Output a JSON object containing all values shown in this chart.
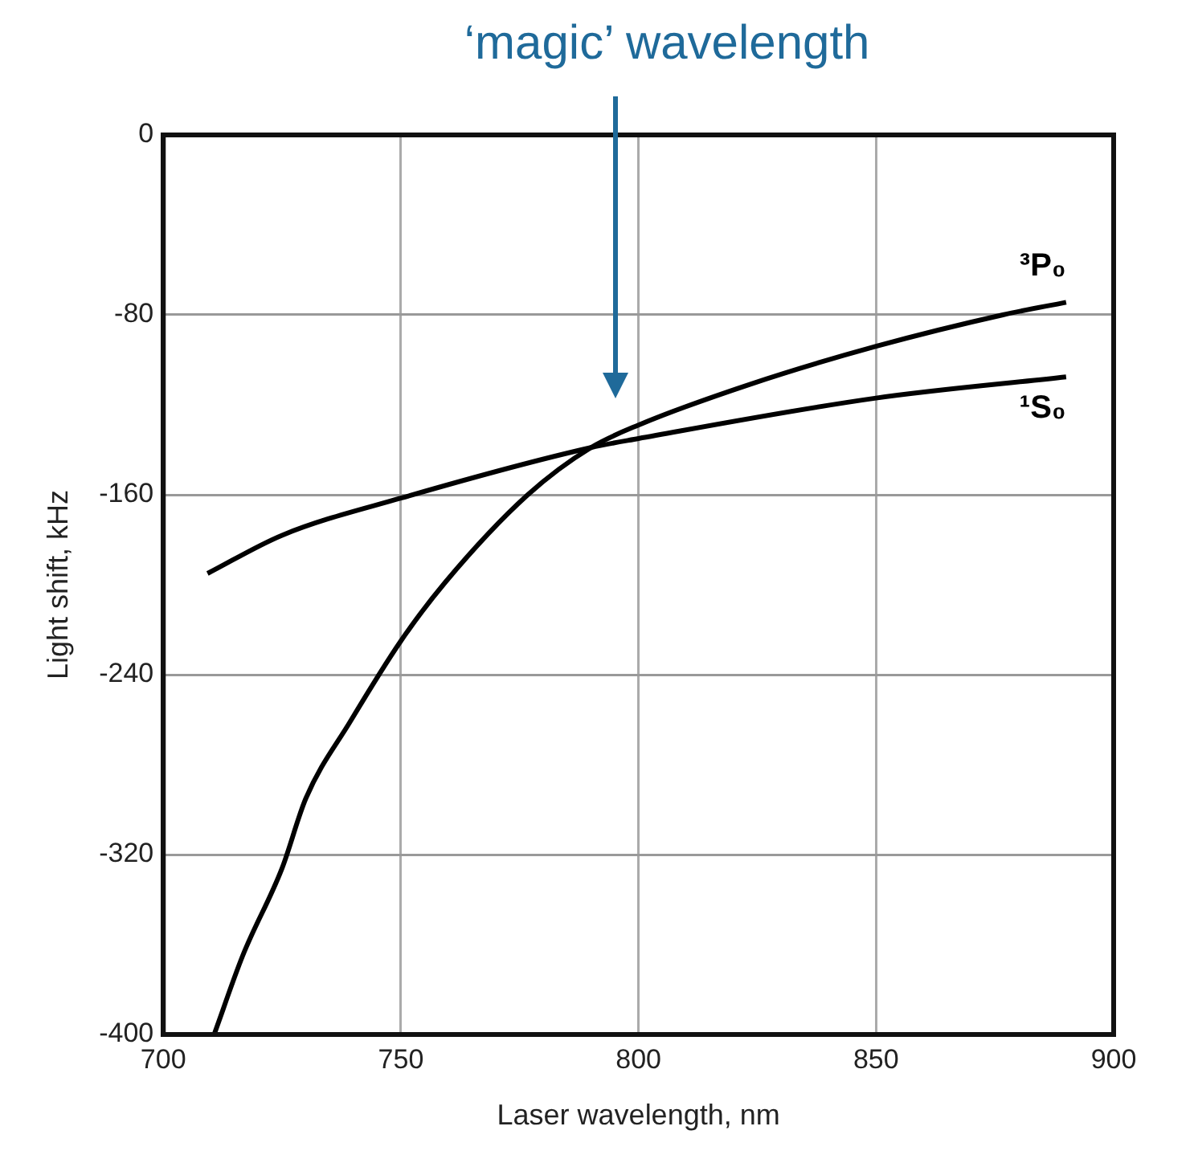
{
  "chart_data": {
    "type": "line",
    "xlabel": "Laser wavelength, nm",
    "ylabel": "Light shift, kHz",
    "xlim": [
      700,
      900
    ],
    "xticks": [
      700,
      750,
      800,
      850,
      900
    ],
    "ylim": [
      -400,
      0
    ],
    "yticks": [
      -400,
      -320,
      -240,
      -160,
      -80,
      0
    ],
    "grid": true,
    "legend": false,
    "marker": "none",
    "line_style": "solid",
    "annotations": [
      "‘magic’ wavelength"
    ],
    "series": [
      {
        "name": "³P₀",
        "color": "#000000",
        "x": [
          710.7,
          716.7,
          725,
          730,
          739.3,
          750,
          759.3,
          776.7,
          790,
          800,
          823.3,
          850,
          876.7,
          890
        ],
        "values": [
          -400,
          -365,
          -326,
          -295,
          -261,
          -225,
          -199,
          -160,
          -139,
          -129,
          -111,
          -94,
          -80,
          -74.4
        ]
      },
      {
        "name": "¹S₀",
        "color": "#000000",
        "x": [
          709.3,
          725,
          750,
          790,
          800,
          850,
          890
        ],
        "values": [
          -195,
          -178,
          -161.5,
          -139,
          -135,
          -117,
          -107.6
        ]
      }
    ]
  }
}
